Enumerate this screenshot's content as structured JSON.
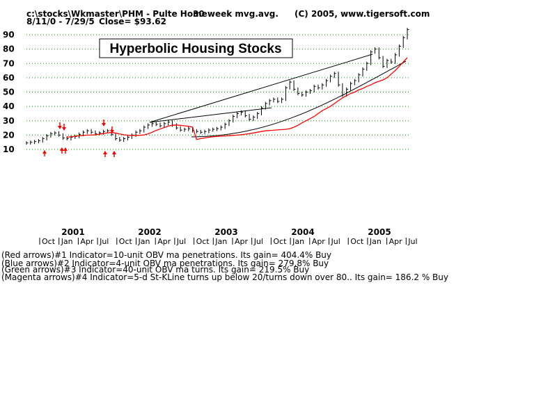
{
  "header": {
    "path": "c:\\stocks\\Wkmaster\\PHM - Pulte Home",
    "indicator": "30 week mvg.avg.",
    "copyright": "(C) 2005, www.tigersoft.com",
    "date_range": "8/11/0 - 7/29/5",
    "close": "Close= $93.62"
  },
  "chart_data": {
    "type": "line",
    "title": "Hyperbolic Housing Stocks",
    "xlabel": "",
    "ylabel": "",
    "ylim": [
      10,
      97
    ],
    "y_ticks": [
      "90",
      "80",
      "70",
      "60",
      "50",
      "40",
      "30",
      "20",
      "10"
    ],
    "grid": true,
    "years": [
      "2001",
      "2002",
      "2003",
      "2004",
      "2005"
    ],
    "month_ticks": [
      "Oct",
      "Jan",
      "Apr",
      "Jul",
      "Oct",
      "Jan",
      "Apr",
      "Jul",
      "Oct",
      "Jan",
      "Apr",
      "Jul",
      "Oct",
      "Jan",
      "Apr",
      "Jul",
      "Oct",
      "Jan",
      "Apr",
      "Jul"
    ],
    "series": [
      {
        "name": "PHM weekly price",
        "color": "#000000",
        "values": [
          14.5,
          15.0,
          15.5,
          16.0,
          17.5,
          19.5,
          21.0,
          21.5,
          20.0,
          18.0,
          17.5,
          18.5,
          19.0,
          20.5,
          22.0,
          23.0,
          22.0,
          21.0,
          21.5,
          22.5,
          23.0,
          20.5,
          17.5,
          16.5,
          17.5,
          18.5,
          20.0,
          22.0,
          23.0,
          25.5,
          27.0,
          28.0,
          27.5,
          26.5,
          28.0,
          29.0,
          27.0,
          25.0,
          23.5,
          24.0,
          24.5,
          23.0,
          22.5,
          22.0,
          22.5,
          23.5,
          24.0,
          24.5,
          25.5,
          27.5,
          30.0,
          33.0,
          35.0,
          36.0,
          33.5,
          31.0,
          32.5,
          35.0,
          39.0,
          42.0,
          44.0,
          45.0,
          43.5,
          45.0,
          53.0,
          57.0,
          52.0,
          49.0,
          48.0,
          50.0,
          51.0,
          54.0,
          53.0,
          55.0,
          58.0,
          61.0,
          63.0,
          55.0,
          48.0,
          52.0,
          56.0,
          58.0,
          62.0,
          66.0,
          70.0,
          78.0,
          80.0,
          74.0,
          68.0,
          72.0,
          71.0,
          76.0,
          82.0,
          88.0,
          93.6
        ]
      },
      {
        "name": "30 week mvg.avg.",
        "color": "#ff0000",
        "values": [
          17.0,
          17.5,
          18.0,
          18.5,
          18.8,
          19.0,
          19.2,
          19.4,
          19.6,
          19.8,
          20.0,
          20.3,
          20.6,
          21.0,
          21.5,
          22.0,
          22.5,
          23.0,
          23.2,
          23.4,
          23.6,
          23.8,
          24.0,
          24.5,
          25.5,
          26.8,
          28.5,
          30.0,
          31.5,
          33.0,
          35.0,
          37.0,
          38.5,
          40.0,
          42.0,
          44.0,
          46.0,
          47.5,
          49.0,
          50.0,
          51.5,
          52.5,
          54.0,
          55.0,
          56.5,
          57.5,
          58.5,
          60.0,
          62.5,
          65.0,
          68.0,
          71.0,
          74.0
        ],
        "x_start_index": 42
      }
    ],
    "trend_lines": [
      {
        "name": "upper channel line"
      },
      {
        "name": "inner channel line"
      },
      {
        "name": "lower hyperbolic curve"
      }
    ],
    "annotations": [
      {
        "name": "red arrows",
        "color": "#ff0000",
        "count": 9
      }
    ]
  },
  "legend": [
    "(Red arrows)#1 Indicator=10-unit OBV ma penetrations. Its gain= 404.4% Buy",
    "(Blue arrows)#2 Indicator=4-unit OBV ma penetrations. Its gain= 279.8% Buy",
    "(Green arrows)#3 Indicator=40-unit OBV ma turns. Its gain= 219.5% Buy",
    "(Magenta arrows)#4 Indicator=5-d St-KLine turns up below 20/turns down over 80.. Its gain= 186.2 % Buy"
  ]
}
